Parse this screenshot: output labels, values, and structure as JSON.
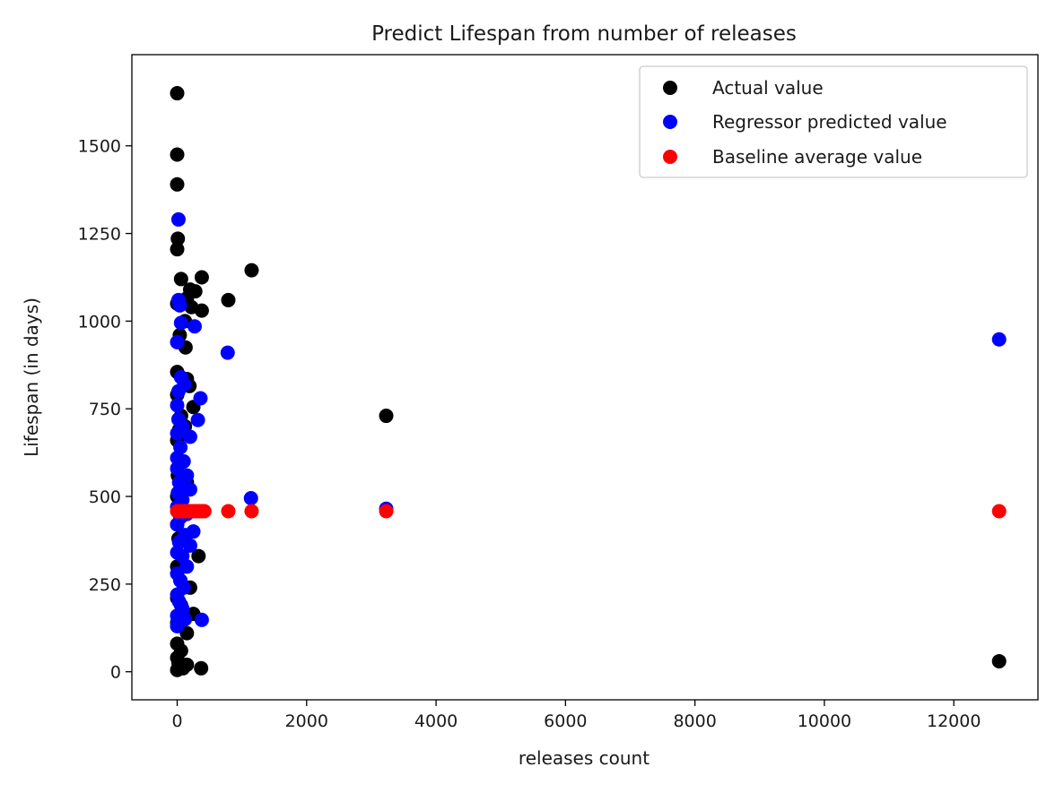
{
  "chart_data": {
    "type": "scatter",
    "title": "Predict Lifespan from number of releases",
    "xlabel": "releases count",
    "ylabel": "Lifespan (in days)",
    "xlim": [
      -700,
      13300
    ],
    "ylim": [
      -80,
      1760
    ],
    "xticks": [
      0,
      2000,
      4000,
      6000,
      8000,
      10000,
      12000
    ],
    "yticks": [
      0,
      250,
      500,
      750,
      1000,
      1250,
      1500
    ],
    "grid": false,
    "legend_position": "top-right",
    "series": [
      {
        "name": "Actual value",
        "color": "#000000",
        "points": [
          [
            0,
            1650
          ],
          [
            0,
            1475
          ],
          [
            0,
            1390
          ],
          [
            10,
            1235
          ],
          [
            0,
            1205
          ],
          [
            60,
            1120
          ],
          [
            380,
            1125
          ],
          [
            1150,
            1145
          ],
          [
            200,
            1090
          ],
          [
            280,
            1085
          ],
          [
            150,
            1065
          ],
          [
            790,
            1060
          ],
          [
            220,
            1040
          ],
          [
            380,
            1030
          ],
          [
            0,
            1050
          ],
          [
            120,
            1000
          ],
          [
            40,
            960
          ],
          [
            130,
            925
          ],
          [
            0,
            855
          ],
          [
            150,
            835
          ],
          [
            190,
            815
          ],
          [
            0,
            790
          ],
          [
            250,
            755
          ],
          [
            60,
            730
          ],
          [
            3230,
            730
          ],
          [
            120,
            700
          ],
          [
            30,
            690
          ],
          [
            0,
            660
          ],
          [
            80,
            600
          ],
          [
            10,
            560
          ],
          [
            150,
            540
          ],
          [
            0,
            500
          ],
          [
            60,
            460
          ],
          [
            0,
            420
          ],
          [
            20,
            380
          ],
          [
            330,
            330
          ],
          [
            0,
            300
          ],
          [
            50,
            260
          ],
          [
            200,
            240
          ],
          [
            0,
            210
          ],
          [
            60,
            190
          ],
          [
            250,
            165
          ],
          [
            0,
            140
          ],
          [
            150,
            110
          ],
          [
            0,
            80
          ],
          [
            60,
            60
          ],
          [
            0,
            40
          ],
          [
            20,
            25
          ],
          [
            150,
            20
          ],
          [
            90,
            10
          ],
          [
            0,
            5
          ],
          [
            370,
            10
          ],
          [
            12700,
            30
          ]
        ]
      },
      {
        "name": "Regressor predicted value",
        "color": "#0000ff",
        "points": [
          [
            20,
            1290
          ],
          [
            20,
            1060
          ],
          [
            40,
            1045
          ],
          [
            60,
            995
          ],
          [
            270,
            985
          ],
          [
            0,
            940
          ],
          [
            780,
            910
          ],
          [
            60,
            840
          ],
          [
            110,
            820
          ],
          [
            20,
            800
          ],
          [
            360,
            780
          ],
          [
            0,
            760
          ],
          [
            20,
            720
          ],
          [
            320,
            718
          ],
          [
            80,
            700
          ],
          [
            0,
            680
          ],
          [
            200,
            670
          ],
          [
            50,
            640
          ],
          [
            0,
            610
          ],
          [
            100,
            600
          ],
          [
            0,
            580
          ],
          [
            150,
            560
          ],
          [
            30,
            540
          ],
          [
            200,
            520
          ],
          [
            10,
            510
          ],
          [
            1140,
            495
          ],
          [
            80,
            490
          ],
          [
            0,
            470
          ],
          [
            3230,
            465
          ],
          [
            150,
            450
          ],
          [
            50,
            440
          ],
          [
            0,
            420
          ],
          [
            250,
            400
          ],
          [
            120,
            390
          ],
          [
            30,
            370
          ],
          [
            200,
            360
          ],
          [
            0,
            340
          ],
          [
            80,
            330
          ],
          [
            150,
            300
          ],
          [
            0,
            280
          ],
          [
            50,
            260
          ],
          [
            100,
            240
          ],
          [
            0,
            220
          ],
          [
            30,
            200
          ],
          [
            80,
            180
          ],
          [
            0,
            160
          ],
          [
            380,
            148
          ],
          [
            10,
            140
          ],
          [
            120,
            150
          ],
          [
            0,
            130
          ],
          [
            12700,
            948
          ]
        ]
      },
      {
        "name": "Baseline average value",
        "color": "#ff0000",
        "points": [
          [
            0,
            458
          ],
          [
            30,
            458
          ],
          [
            60,
            458
          ],
          [
            90,
            458
          ],
          [
            120,
            458
          ],
          [
            150,
            458
          ],
          [
            180,
            458
          ],
          [
            210,
            458
          ],
          [
            240,
            458
          ],
          [
            270,
            458
          ],
          [
            300,
            458
          ],
          [
            330,
            458
          ],
          [
            360,
            458
          ],
          [
            390,
            458
          ],
          [
            420,
            458
          ],
          [
            790,
            458
          ],
          [
            1150,
            458
          ],
          [
            3230,
            458
          ],
          [
            12700,
            458
          ]
        ]
      }
    ]
  }
}
